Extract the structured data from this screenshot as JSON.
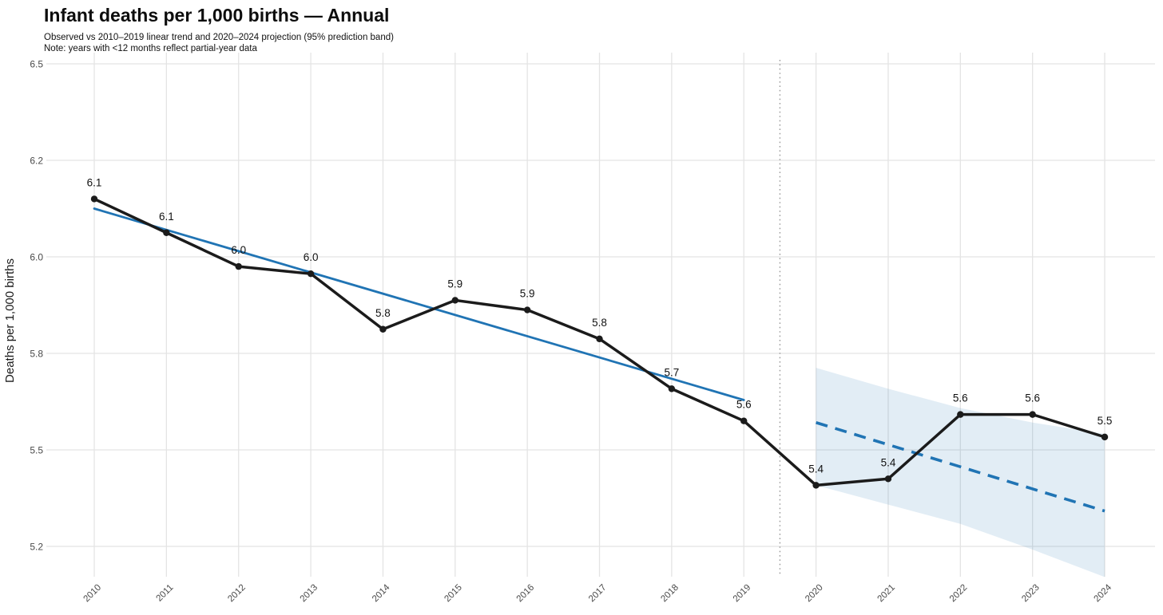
{
  "header": {
    "title": "Infant deaths per 1,000 births — Annual",
    "subtitle": "Observed vs 2010–2019 linear trend and 2020–2024 projection (95% prediction band)",
    "note": "Note: years with <12 months reflect partial-year data"
  },
  "chart_data": {
    "type": "line",
    "title": "Infant deaths per 1,000 births — Annual",
    "subtitle": "Observed vs 2010–2019 linear trend and 2020–2024 projection (95% prediction band)",
    "note": "Note: years with <12 months reflect partial-year data",
    "xlabel": "",
    "ylabel": "Deaths per 1,000 births",
    "x": [
      2010,
      2011,
      2012,
      2013,
      2014,
      2015,
      2016,
      2017,
      2018,
      2019,
      2020,
      2021,
      2022,
      2023,
      2024
    ],
    "x_tick_labels": [
      "2010",
      "2011",
      "2012",
      "2013",
      "2014",
      "2015",
      "2016",
      "2017",
      "2018",
      "2019",
      "2020",
      "2021",
      "2022",
      "2023",
      "2024"
    ],
    "y_tick_labels": [
      "6.5",
      "6.2",
      "6.0",
      "5.8",
      "5.5",
      "5.2"
    ],
    "y_tick_values": [
      6.5,
      6.2,
      6.0,
      5.8,
      5.5,
      5.2
    ],
    "grid": true,
    "legend": "none",
    "series": [
      {
        "name": "Observed",
        "x": [
          2010,
          2011,
          2012,
          2013,
          2014,
          2015,
          2016,
          2017,
          2018,
          2019,
          2020,
          2021,
          2022,
          2023,
          2024
        ],
        "values": [
          6.12,
          6.05,
          5.98,
          5.965,
          5.85,
          5.91,
          5.89,
          5.83,
          5.69,
          5.59,
          5.39,
          5.41,
          5.61,
          5.61,
          5.54
        ],
        "point_labels": [
          "6.1",
          "6.1",
          "6.0",
          "6.0",
          "5.8",
          "5.9",
          "5.9",
          "5.8",
          "5.7",
          "5.6",
          "5.4",
          "5.4",
          "5.6",
          "5.6",
          "5.5"
        ],
        "color": "#1b1b1b",
        "style": "solid",
        "markers": true
      },
      {
        "name": "2010–2019 linear trend",
        "x": [
          2010,
          2019
        ],
        "values": [
          6.1,
          5.655
        ],
        "color": "#2074b4",
        "style": "solid",
        "markers": false
      },
      {
        "name": "2020–2024 projection",
        "x": [
          2020,
          2024
        ],
        "values": [
          5.585,
          5.31
        ],
        "color": "#2074b4",
        "style": "dashed",
        "markers": false
      }
    ],
    "band": {
      "name": "95% prediction band",
      "x": [
        2020,
        2021,
        2022,
        2023,
        2024
      ],
      "upper": [
        5.755,
        5.69,
        5.63,
        5.585,
        5.55
      ],
      "lower": [
        5.39,
        5.33,
        5.27,
        5.19,
        5.105
      ],
      "fill": "rgba(31,119,180,0.13)"
    },
    "separator_x": 2019.5,
    "colors": {
      "observed": "#1b1b1b",
      "trend": "#2074b4",
      "grid": "#e4e4e4",
      "tick_text": "#4a4a4a",
      "separator": "#999999",
      "point_label": "#111111",
      "background": "#ffffff"
    }
  }
}
